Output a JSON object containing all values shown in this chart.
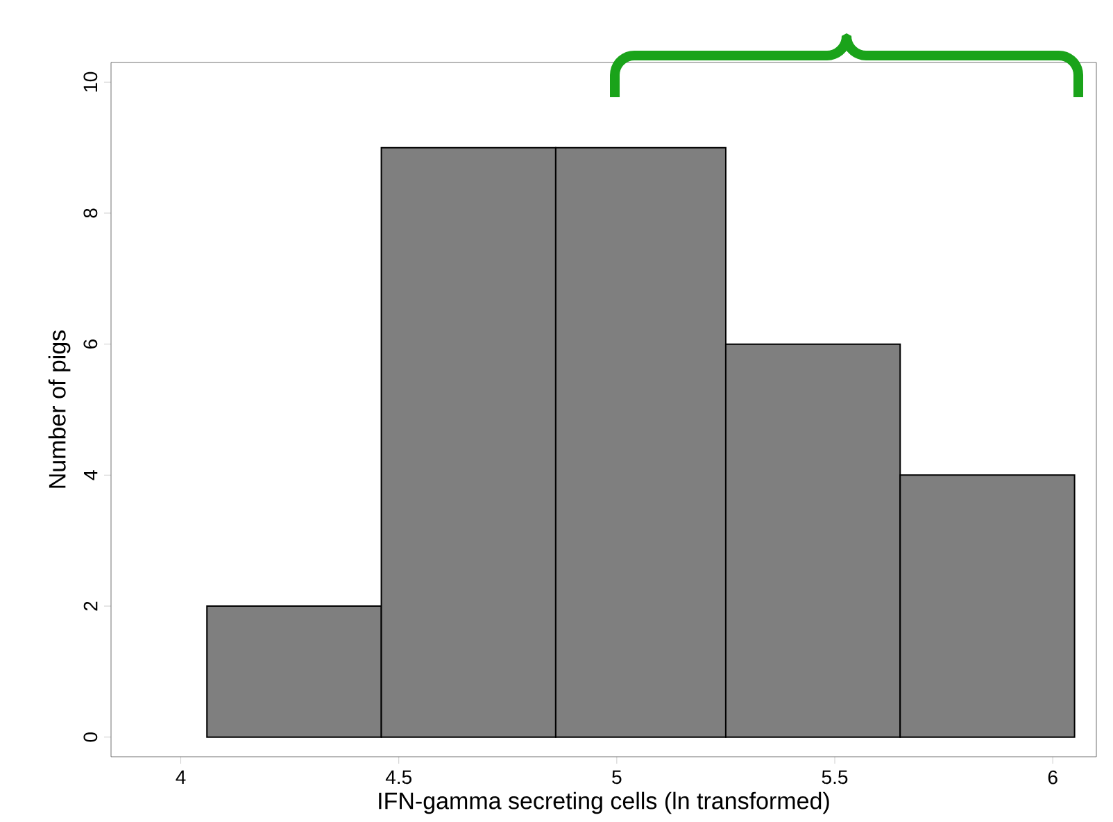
{
  "chart_data": {
    "type": "histogram",
    "xlabel": "IFN-gamma secreting cells (ln transformed)",
    "ylabel": "Number of pigs",
    "bins": [
      4.06,
      4.46,
      4.86,
      5.25,
      5.65,
      6.05
    ],
    "values": [
      2,
      9,
      9,
      6,
      4
    ],
    "color": "#7f7f7f",
    "xlim": [
      3.84,
      6.1
    ],
    "ylim": [
      -0.3,
      10.3
    ],
    "xticks": [
      4,
      4.5,
      5,
      5.5,
      6
    ],
    "yticks": [
      0,
      2,
      4,
      6,
      8,
      10
    ]
  }
}
